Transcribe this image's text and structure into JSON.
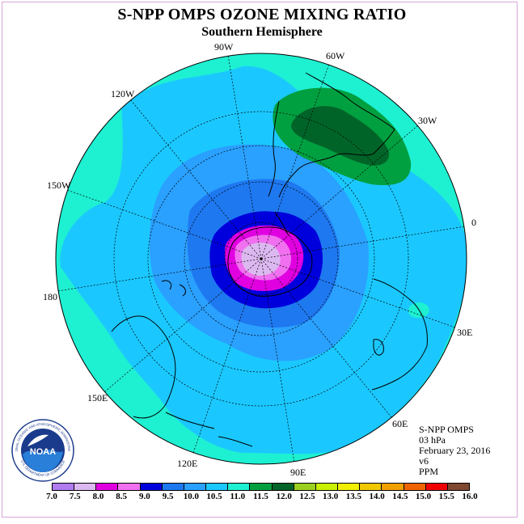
{
  "title": "S-NPP OMPS OZONE MIXING RATIO",
  "subtitle": "Southern Hemisphere",
  "longitude_labels": [
    {
      "text": "90W"
    },
    {
      "text": "60W"
    },
    {
      "text": "120W"
    },
    {
      "text": "30W"
    },
    {
      "text": "150W"
    },
    {
      "text": "0"
    },
    {
      "text": "180"
    },
    {
      "text": "30E"
    },
    {
      "text": "150E"
    },
    {
      "text": "60E"
    },
    {
      "text": "120E"
    },
    {
      "text": "90E"
    }
  ],
  "info": {
    "instrument": "S-NPP OMPS",
    "level": "03 hPa",
    "date": "February 23, 2016",
    "version": "v6",
    "units": "PPM"
  },
  "colorbar": {
    "ticks": [
      "7.0",
      "7.5",
      "8.0",
      "8.5",
      "9.0",
      "9.5",
      "10.0",
      "10.5",
      "11.0",
      "11.5",
      "12.0",
      "12.5",
      "13.0",
      "13.5",
      "14.0",
      "14.5",
      "15.0",
      "15.5",
      "16.0"
    ],
    "colors": [
      "#b07cf0",
      "#dcb8f0",
      "#e000e0",
      "#f070f0",
      "#0000dd",
      "#1e78f0",
      "#2aa0ff",
      "#1ac8ff",
      "#1ef0d2",
      "#00a040",
      "#006428",
      "#9cd020",
      "#c8f000",
      "#f0f000",
      "#f0c800",
      "#f0a000",
      "#f06400",
      "#f00000",
      "#804830"
    ]
  },
  "logo": {
    "text": "NOAA",
    "ring_text": "NATIONAL OCEANIC AND ATMOSPHERIC ADMINISTRATION",
    "bottom_text": "U.S. DEPARTMENT OF COMMERCE"
  },
  "map_colors": {
    "outer": "#1ef0d2",
    "band1": "#1ac8ff",
    "band2": "#2aa0ff",
    "band3": "#1e78f0",
    "ring_blue": "#0000dd",
    "ring_magenta": "#e000e0",
    "ring_pink": "#f070f0",
    "center": "#dcb8f0",
    "high1": "#00a040",
    "high2": "#006428"
  }
}
